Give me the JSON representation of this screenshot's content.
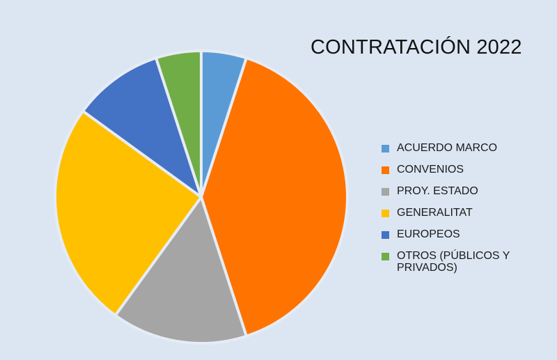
{
  "chart_data": {
    "type": "pie",
    "title": "CONTRATACIÓN 2022",
    "legend_position": "right",
    "start_angle_deg": 0,
    "direction": "clockwise",
    "slices": [
      {
        "label": "ACUERDO MARCO",
        "value": 5,
        "color": "#5b9bd5"
      },
      {
        "label": "CONVENIOS",
        "value": 40,
        "color": "#ff7300"
      },
      {
        "label": "PROY. ESTADO",
        "value": 15,
        "color": "#a5a5a5"
      },
      {
        "label": "GENERALITAT",
        "value": 25,
        "color": "#ffc000"
      },
      {
        "label": "EUROPEOS",
        "value": 10,
        "color": "#4472c4"
      },
      {
        "label": "OTROS (PÚBLICOS Y PRIVADOS)",
        "value": 5,
        "color": "#70ad47"
      }
    ]
  }
}
